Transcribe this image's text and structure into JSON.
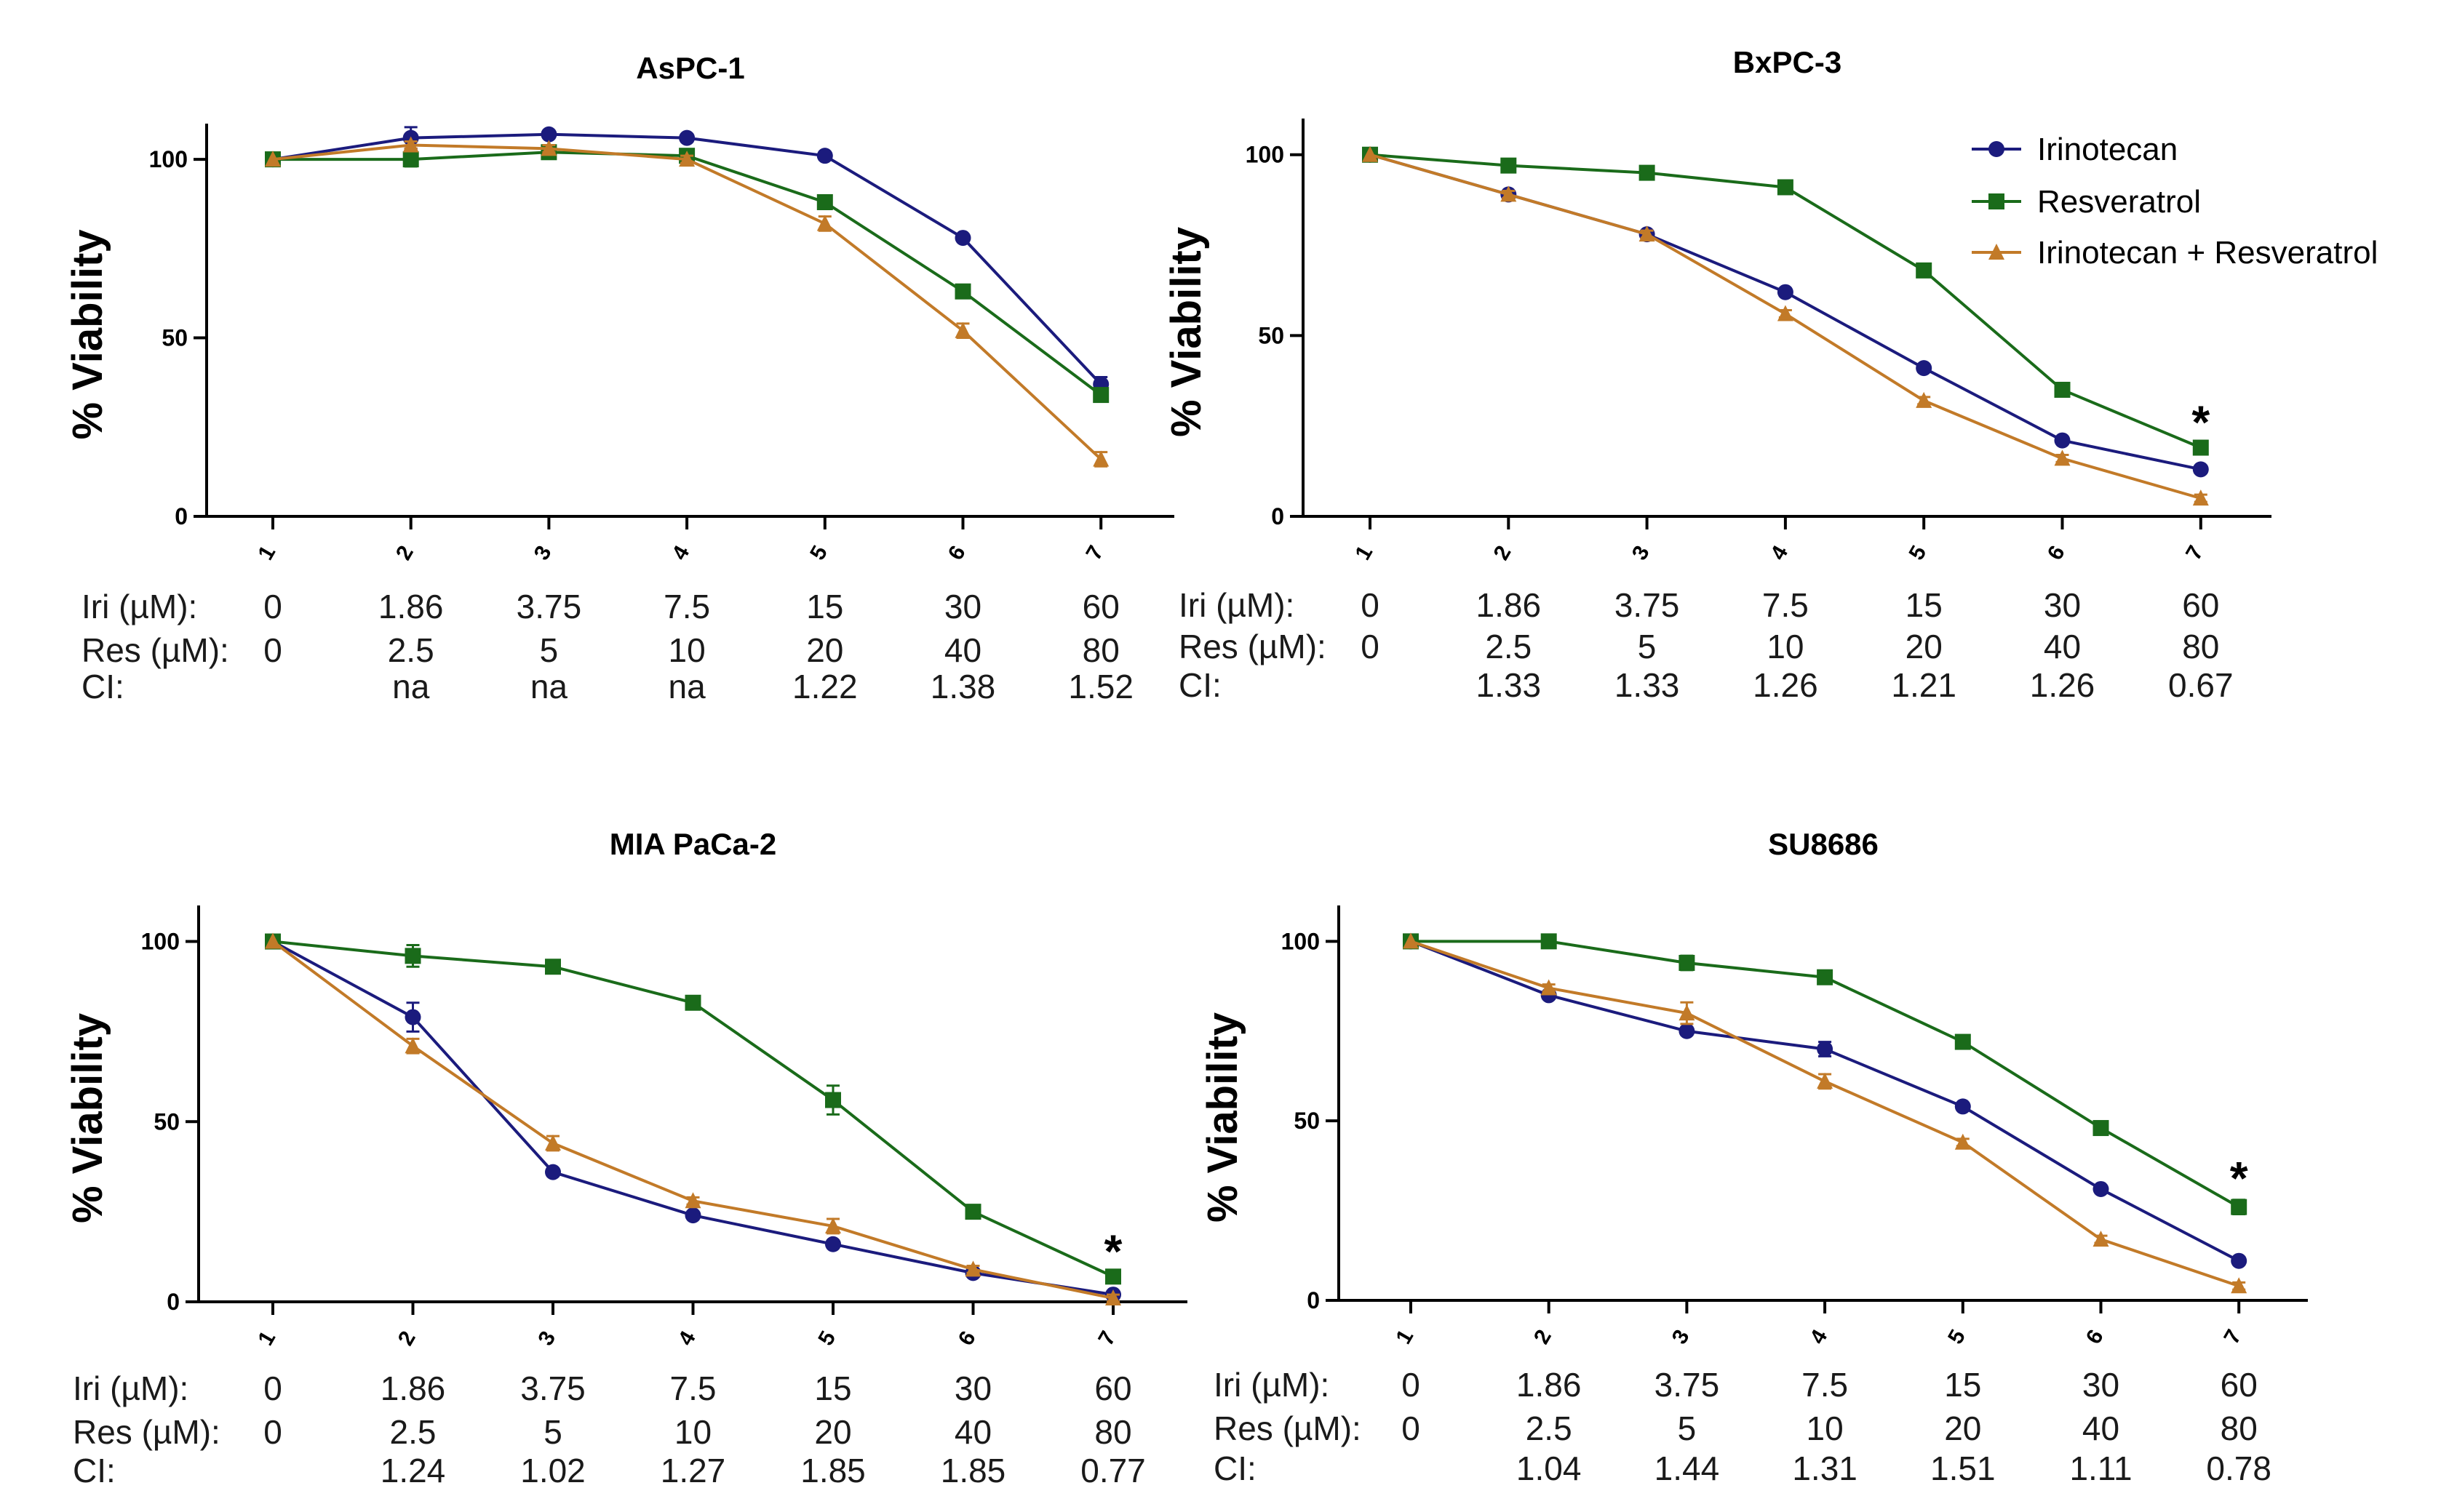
{
  "figure_labels": {
    "ylabel": "% Viability",
    "row_labels": {
      "iri": "Iri (µM):",
      "res": "Res (µM):",
      "ci": "CI:"
    },
    "iri_doses": [
      "0",
      "1.86",
      "3.75",
      "7.5",
      "15",
      "30",
      "60"
    ],
    "res_doses": [
      "0",
      "2.5",
      "5",
      "10",
      "20",
      "40",
      "80"
    ]
  },
  "legend": {
    "irinotecan": "Irinotecan",
    "resveratrol": "Resveratrol",
    "combo": "Irinotecan + Resveratrol"
  },
  "colors": {
    "irinotecan": "#1b1b7d",
    "resveratrol": "#1a6b1a",
    "combo": "#c27a28"
  },
  "chart_data": [
    {
      "type": "line",
      "title": "AsPC-1",
      "ylabel": "% Viability",
      "ylim": [
        0,
        110
      ],
      "yticks": [
        0,
        50,
        100
      ],
      "categories": [
        "1",
        "2",
        "3",
        "4",
        "5",
        "6",
        "7"
      ],
      "series": [
        {
          "name": "Irinotecan",
          "marker": "circle",
          "values": [
            100,
            106,
            107,
            106,
            101,
            78,
            37
          ],
          "errors": [
            0,
            3,
            1,
            1,
            1,
            1,
            2
          ]
        },
        {
          "name": "Resveratrol",
          "marker": "square",
          "values": [
            100,
            100,
            102,
            101,
            88,
            63,
            34
          ],
          "errors": [
            0,
            2,
            1,
            1,
            1,
            1,
            1
          ]
        },
        {
          "name": "Irinotecan + Resveratrol",
          "marker": "triangle",
          "values": [
            100,
            104,
            103,
            100,
            82,
            52,
            16
          ],
          "errors": [
            0,
            1,
            1,
            1,
            2,
            2,
            2
          ]
        }
      ],
      "ci": [
        "",
        "na",
        "na",
        "na",
        "1.22",
        "1.38",
        "1.52"
      ],
      "significance": ""
    },
    {
      "type": "line",
      "title": "BxPC-3",
      "ylabel": "% Viability",
      "ylim": [
        0,
        110
      ],
      "yticks": [
        0,
        50,
        100
      ],
      "categories": [
        "1",
        "2",
        "3",
        "4",
        "5",
        "6",
        "7"
      ],
      "series": [
        {
          "name": "Irinotecan",
          "marker": "circle",
          "values": [
            100,
            89,
            78,
            62,
            41,
            21,
            13
          ],
          "errors": [
            0,
            1,
            1,
            1,
            1,
            1,
            1
          ]
        },
        {
          "name": "Resveratrol",
          "marker": "square",
          "values": [
            100,
            97,
            95,
            91,
            68,
            35,
            19
          ],
          "errors": [
            0,
            1,
            1,
            1,
            1,
            1,
            1
          ]
        },
        {
          "name": "Irinotecan + Resveratrol",
          "marker": "triangle",
          "values": [
            100,
            89,
            78,
            56,
            32,
            16,
            5
          ],
          "errors": [
            0,
            1,
            1,
            1,
            1,
            1,
            1
          ]
        }
      ],
      "ci": [
        "",
        "1.33",
        "1.33",
        "1.26",
        "1.21",
        "1.26",
        "0.67"
      ],
      "significance": "*"
    },
    {
      "type": "line",
      "title": "MIA PaCa-2",
      "ylabel": "% Viability",
      "ylim": [
        0,
        110
      ],
      "yticks": [
        0,
        50,
        100
      ],
      "categories": [
        "1",
        "2",
        "3",
        "4",
        "5",
        "6",
        "7"
      ],
      "series": [
        {
          "name": "Irinotecan",
          "marker": "circle",
          "values": [
            100,
            79,
            36,
            24,
            16,
            8,
            2
          ],
          "errors": [
            0,
            4,
            1,
            1,
            1,
            1,
            1
          ]
        },
        {
          "name": "Resveratrol",
          "marker": "square",
          "values": [
            100,
            96,
            93,
            83,
            56,
            25,
            7
          ],
          "errors": [
            0,
            3,
            1,
            1,
            4,
            1,
            1
          ]
        },
        {
          "name": "Irinotecan + Resveratrol",
          "marker": "triangle",
          "values": [
            100,
            71,
            44,
            28,
            21,
            9,
            1
          ],
          "errors": [
            0,
            2,
            2,
            1,
            2,
            1,
            1
          ]
        }
      ],
      "ci": [
        "",
        "1.24",
        "1.02",
        "1.27",
        "1.85",
        "1.85",
        "0.77"
      ],
      "significance": "*"
    },
    {
      "type": "line",
      "title": "SU8686",
      "ylabel": "% Viability",
      "ylim": [
        0,
        110
      ],
      "yticks": [
        0,
        50,
        100
      ],
      "categories": [
        "1",
        "2",
        "3",
        "4",
        "5",
        "6",
        "7"
      ],
      "series": [
        {
          "name": "Irinotecan",
          "marker": "circle",
          "values": [
            100,
            85,
            75,
            70,
            54,
            31,
            11
          ],
          "errors": [
            0,
            1,
            1,
            2,
            1,
            1,
            1
          ]
        },
        {
          "name": "Resveratrol",
          "marker": "square",
          "values": [
            100,
            100,
            94,
            90,
            72,
            48,
            26
          ],
          "errors": [
            0,
            1,
            2,
            1,
            1,
            1,
            2
          ]
        },
        {
          "name": "Irinotecan + Resveratrol",
          "marker": "triangle",
          "values": [
            100,
            87,
            80,
            61,
            44,
            17,
            4
          ],
          "errors": [
            0,
            1,
            3,
            2,
            1,
            1,
            1
          ]
        }
      ],
      "ci": [
        "",
        "1.04",
        "1.44",
        "1.31",
        "1.51",
        "1.11",
        "0.78"
      ],
      "significance": "*"
    }
  ]
}
